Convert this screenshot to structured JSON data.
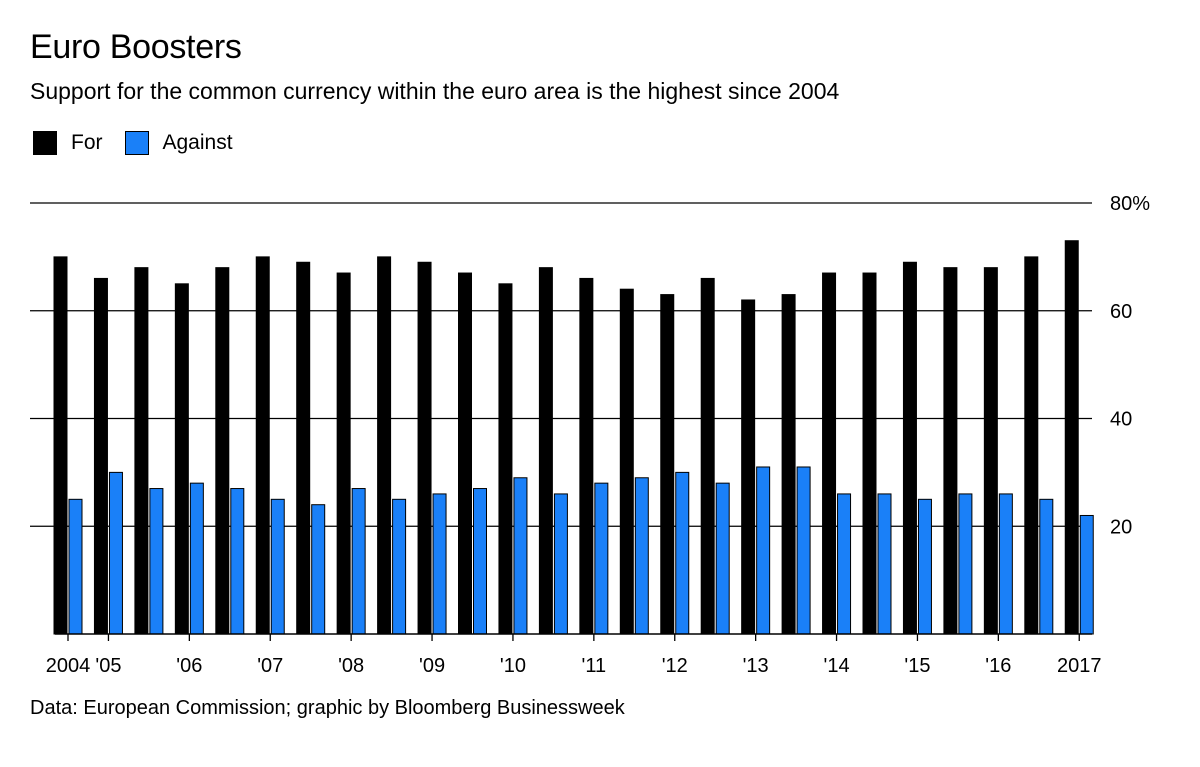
{
  "chart_data": {
    "type": "bar",
    "title": "Euro Boosters",
    "subtitle": "Support for the common currency within the euro area is the highest since 2004",
    "source": "Data: European Commission; graphic by Bloomberg Businessweek",
    "categories": [
      "2004",
      "'05",
      "",
      "'06",
      "",
      "'07",
      "",
      "'08",
      "",
      "'09",
      "",
      "'10",
      "",
      "'11",
      "",
      "'12",
      "",
      "'13",
      "",
      "'14",
      "",
      "'15",
      "",
      "'16",
      "",
      "2017"
    ],
    "x_tick_labels": [
      {
        "index": 0,
        "label": "2004"
      },
      {
        "index": 1,
        "label": "'05"
      },
      {
        "index": 3,
        "label": "'06"
      },
      {
        "index": 5,
        "label": "'07"
      },
      {
        "index": 7,
        "label": "'08"
      },
      {
        "index": 9,
        "label": "'09"
      },
      {
        "index": 11,
        "label": "'10"
      },
      {
        "index": 13,
        "label": "'11"
      },
      {
        "index": 15,
        "label": "'12"
      },
      {
        "index": 17,
        "label": "'13"
      },
      {
        "index": 19,
        "label": "'14"
      },
      {
        "index": 21,
        "label": "'15"
      },
      {
        "index": 23,
        "label": "'16"
      },
      {
        "index": 25,
        "label": "2017"
      }
    ],
    "series": [
      {
        "name": "For",
        "color": "#000000",
        "values": [
          70,
          66,
          68,
          65,
          68,
          70,
          69,
          67,
          70,
          69,
          67,
          65,
          68,
          66,
          64,
          63,
          66,
          62,
          63,
          67,
          67,
          69,
          68,
          68,
          70,
          73
        ]
      },
      {
        "name": "Against",
        "color": "#1a80f8",
        "values": [
          25,
          30,
          27,
          28,
          27,
          25,
          24,
          27,
          25,
          26,
          27,
          29,
          26,
          28,
          29,
          30,
          28,
          31,
          31,
          26,
          26,
          25,
          26,
          26,
          25,
          22
        ]
      }
    ],
    "y_ticks": [
      {
        "value": 20,
        "label": "20"
      },
      {
        "value": 40,
        "label": "40"
      },
      {
        "value": 60,
        "label": "60"
      },
      {
        "value": 80,
        "label": "80%"
      }
    ],
    "ylim": [
      0,
      80
    ],
    "grid": true,
    "legend_position": "top-left"
  }
}
